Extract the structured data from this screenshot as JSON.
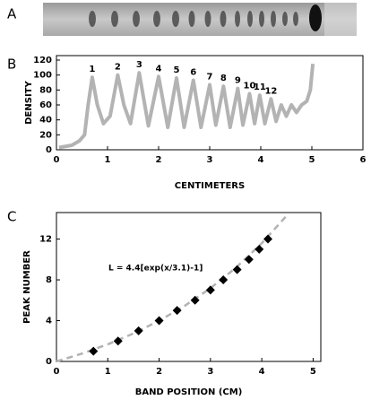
{
  "image_panel": {
    "label": "A"
  },
  "chart_data": [
    {
      "type": "line",
      "panel": "B",
      "x_label": "CENTIMETERS",
      "y_label": "DENSITY",
      "xlim": [
        0,
        6
      ],
      "ylim": [
        0,
        126
      ],
      "xticks": [
        0,
        1,
        2,
        3,
        4,
        5,
        6
      ],
      "yticks": [
        0,
        20,
        40,
        60,
        80,
        100,
        120
      ],
      "color": "#b3b3b3",
      "x": [
        0.05,
        0.3,
        0.45,
        0.55,
        0.62,
        0.7,
        0.8,
        0.92,
        1.05,
        1.2,
        1.32,
        1.45,
        1.62,
        1.8,
        2.0,
        2.18,
        2.35,
        2.5,
        2.68,
        2.83,
        3.0,
        3.12,
        3.27,
        3.4,
        3.55,
        3.65,
        3.78,
        3.88,
        3.98,
        4.08,
        4.2,
        4.3,
        4.4,
        4.5,
        4.6,
        4.7,
        4.8,
        4.9,
        4.97,
        5.02
      ],
      "values": [
        3,
        6,
        12,
        20,
        60,
        97,
        60,
        35,
        45,
        100,
        60,
        35,
        103,
        32,
        98,
        30,
        96,
        30,
        93,
        30,
        87,
        33,
        85,
        30,
        82,
        33,
        75,
        35,
        73,
        35,
        68,
        38,
        60,
        45,
        60,
        50,
        60,
        65,
        80,
        115
      ],
      "annotations": [
        {
          "text": "1",
          "x": 0.7,
          "y": 97
        },
        {
          "text": "2",
          "x": 1.2,
          "y": 100
        },
        {
          "text": "3",
          "x": 1.62,
          "y": 103
        },
        {
          "text": "4",
          "x": 2.0,
          "y": 98
        },
        {
          "text": "5",
          "x": 2.35,
          "y": 96
        },
        {
          "text": "6",
          "x": 2.68,
          "y": 93
        },
        {
          "text": "7",
          "x": 3.0,
          "y": 87
        },
        {
          "text": "8",
          "x": 3.27,
          "y": 85
        },
        {
          "text": "9",
          "x": 3.55,
          "y": 82
        },
        {
          "text": "10",
          "x": 3.78,
          "y": 75
        },
        {
          "text": "11",
          "x": 3.98,
          "y": 73
        },
        {
          "text": "12",
          "x": 4.2,
          "y": 68
        }
      ]
    },
    {
      "type": "scatter",
      "panel": "C",
      "x_label": "BAND POSITION (CM)",
      "y_label": "PEAK NUMBER",
      "xlim": [
        0,
        5.15
      ],
      "ylim": [
        0,
        14.6
      ],
      "xticks": [
        0,
        1,
        2,
        3,
        4,
        5
      ],
      "yticks": [
        0,
        4,
        8,
        12
      ],
      "color": "#000000",
      "x": [
        0.72,
        1.2,
        1.6,
        2.0,
        2.35,
        2.7,
        3.0,
        3.25,
        3.52,
        3.75,
        3.95,
        4.12
      ],
      "values": [
        1,
        2,
        3,
        4,
        5,
        6,
        7,
        8,
        9,
        10,
        11,
        12
      ],
      "fit_line": {
        "color": "#b3b3b3",
        "x": [
          0,
          0.5,
          1,
          1.5,
          2,
          2.5,
          3,
          3.5,
          4,
          4.5
        ],
        "values": [
          0,
          0.77,
          1.68,
          2.74,
          3.99,
          5.46,
          7.18,
          9.21,
          11.59,
          14.38
        ]
      },
      "equation": "L = 4.4[exp(x/3.1)-1]"
    }
  ]
}
